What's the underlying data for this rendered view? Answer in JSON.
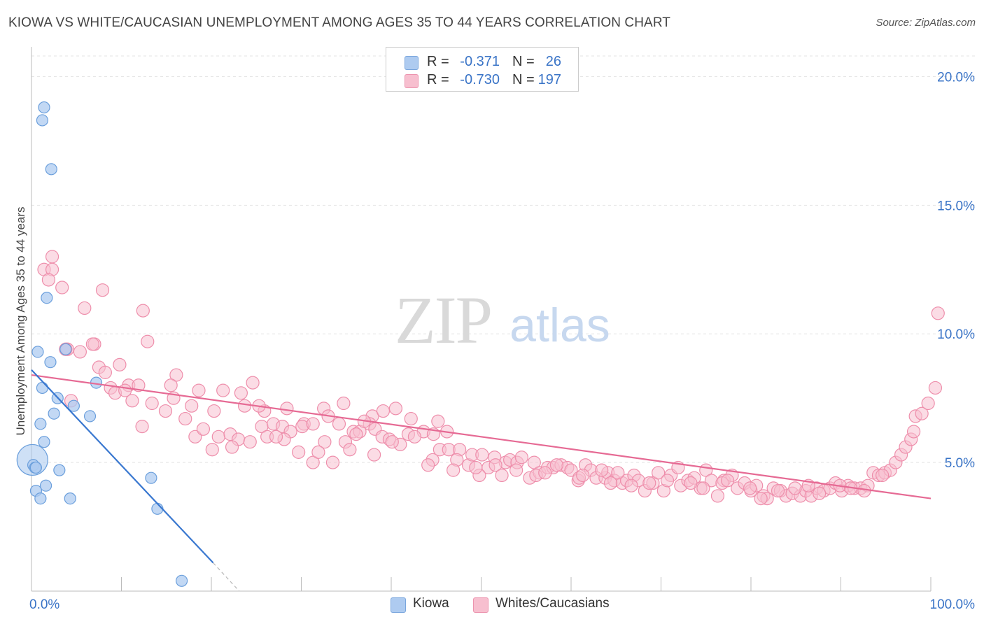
{
  "title": "KIOWA VS WHITE/CAUCASIAN UNEMPLOYMENT AMONG AGES 35 TO 44 YEARS CORRELATION CHART",
  "source": "Source: ZipAtlas.com",
  "watermark": {
    "zip": "ZIP",
    "atlas": "atlas"
  },
  "legend": {
    "rows": [
      {
        "r_label": "R =",
        "r_value": "-0.371",
        "n_label": "N =",
        "n_value": "26",
        "color": "#aecbf0",
        "border": "#7aa6dd"
      },
      {
        "r_label": "R =",
        "r_value": "-0.730",
        "n_label": "N =",
        "n_value": "197",
        "color": "#f7bfcf",
        "border": "#ec93ae"
      }
    ]
  },
  "bottom_legend": {
    "kiowa": "Kiowa",
    "whites": "Whites/Caucasians"
  },
  "colors": {
    "kiowa_fill": "#aecbf0",
    "kiowa_stroke": "#6b9fdc",
    "kiowa_line": "#3a78d0",
    "white_fill": "#f7bfcf",
    "white_stroke": "#ee8eab",
    "white_line": "#e66a94",
    "axis_label": "#3a74c7"
  },
  "chart_data": {
    "type": "scatter",
    "title": "KIOWA VS WHITE/CAUCASIAN UNEMPLOYMENT AMONG AGES 35 TO 44 YEARS CORRELATION CHART",
    "xlabel": "",
    "ylabel": "Unemployment Among Ages 35 to 44 years",
    "xlim": [
      0,
      100
    ],
    "ylim": [
      0,
      20.8
    ],
    "x_tick_labels": [
      "0.0%",
      "100.0%"
    ],
    "y_ticks": [
      5,
      10,
      15,
      20
    ],
    "y_tick_labels": [
      "5.0%",
      "10.0%",
      "15.0%",
      "20.0%"
    ],
    "grid": true,
    "legend_position": "top-center",
    "series": [
      {
        "name": "Kiowa",
        "r": -0.371,
        "n": 26,
        "trend": {
          "x": [
            0,
            20.2
          ],
          "y": [
            8.6,
            1.1
          ],
          "dashed_to": [
            23.1,
            0
          ]
        },
        "points": [
          [
            1.4,
            18.8
          ],
          [
            1.2,
            18.3
          ],
          [
            2.2,
            16.4
          ],
          [
            1.7,
            11.4
          ],
          [
            0.7,
            9.3
          ],
          [
            2.1,
            8.9
          ],
          [
            3.8,
            9.4
          ],
          [
            1.2,
            7.9
          ],
          [
            2.9,
            7.5
          ],
          [
            7.2,
            8.1
          ],
          [
            2.5,
            6.9
          ],
          [
            4.7,
            7.2
          ],
          [
            6.5,
            6.8
          ],
          [
            1.0,
            6.5
          ],
          [
            1.4,
            5.8
          ],
          [
            0.2,
            4.9
          ],
          [
            0.4,
            4.8
          ],
          [
            0.5,
            4.8
          ],
          [
            3.1,
            4.7
          ],
          [
            1.6,
            4.1
          ],
          [
            0.5,
            3.9
          ],
          [
            13.3,
            4.4
          ],
          [
            1.0,
            3.6
          ],
          [
            4.3,
            3.6
          ],
          [
            14.0,
            3.2
          ],
          [
            16.7,
            0.4
          ]
        ],
        "big_point": [
          0.1,
          5.1
        ]
      },
      {
        "name": "Whites/Caucasians",
        "r": -0.73,
        "n": 197,
        "trend": {
          "x": [
            0,
            100
          ],
          "y": [
            8.4,
            3.6
          ]
        },
        "points": [
          [
            2.3,
            13.0
          ],
          [
            1.4,
            12.5
          ],
          [
            2.3,
            12.5
          ],
          [
            1.9,
            12.1
          ],
          [
            3.4,
            11.8
          ],
          [
            7.9,
            11.7
          ],
          [
            5.9,
            11.0
          ],
          [
            12.4,
            10.9
          ],
          [
            12.9,
            9.7
          ],
          [
            7.0,
            9.6
          ],
          [
            6.8,
            9.6
          ],
          [
            4.0,
            9.4
          ],
          [
            5.4,
            9.3
          ],
          [
            3.8,
            9.4
          ],
          [
            4.4,
            7.4
          ],
          [
            7.5,
            8.7
          ],
          [
            9.8,
            8.8
          ],
          [
            8.2,
            8.5
          ],
          [
            16.1,
            8.4
          ],
          [
            8.8,
            7.9
          ],
          [
            10.8,
            8.0
          ],
          [
            11.9,
            8.0
          ],
          [
            15.5,
            8.0
          ],
          [
            18.6,
            7.8
          ],
          [
            21.3,
            7.8
          ],
          [
            23.3,
            7.7
          ],
          [
            24.6,
            8.1
          ],
          [
            9.3,
            7.7
          ],
          [
            10.4,
            7.8
          ],
          [
            11.2,
            7.4
          ],
          [
            13.4,
            7.3
          ],
          [
            15.8,
            7.5
          ],
          [
            17.8,
            7.2
          ],
          [
            20.3,
            7.0
          ],
          [
            23.7,
            7.2
          ],
          [
            25.9,
            7.0
          ],
          [
            28.4,
            7.1
          ],
          [
            32.5,
            7.1
          ],
          [
            34.7,
            7.3
          ],
          [
            37.9,
            6.8
          ],
          [
            40.5,
            7.1
          ],
          [
            42.2,
            6.7
          ],
          [
            45.2,
            6.6
          ],
          [
            14.9,
            7.0
          ],
          [
            17.1,
            6.7
          ],
          [
            12.3,
            6.4
          ],
          [
            18.2,
            6.0
          ],
          [
            19.1,
            6.3
          ],
          [
            20.1,
            5.5
          ],
          [
            20.8,
            6.0
          ],
          [
            22.1,
            6.1
          ],
          [
            23.0,
            5.9
          ],
          [
            24.3,
            5.8
          ],
          [
            25.6,
            6.4
          ],
          [
            26.2,
            6.0
          ],
          [
            26.9,
            6.5
          ],
          [
            27.9,
            6.4
          ],
          [
            28.8,
            6.2
          ],
          [
            28.1,
            5.9
          ],
          [
            30.3,
            6.5
          ],
          [
            30.1,
            6.4
          ],
          [
            31.3,
            6.5
          ],
          [
            32.6,
            5.8
          ],
          [
            33.0,
            6.8
          ],
          [
            34.2,
            6.5
          ],
          [
            34.9,
            5.8
          ],
          [
            35.8,
            6.2
          ],
          [
            36.5,
            6.2
          ],
          [
            37.6,
            6.5
          ],
          [
            38.2,
            6.3
          ],
          [
            39.0,
            6.0
          ],
          [
            39.8,
            5.9
          ],
          [
            41.0,
            5.7
          ],
          [
            41.9,
            6.1
          ],
          [
            43.6,
            6.2
          ],
          [
            44.7,
            6.1
          ],
          [
            46.2,
            6.2
          ],
          [
            38.1,
            5.3
          ],
          [
            29.7,
            5.4
          ],
          [
            31.3,
            5.0
          ],
          [
            40.1,
            5.8
          ],
          [
            44.6,
            5.1
          ],
          [
            45.4,
            5.5
          ],
          [
            46.4,
            5.5
          ],
          [
            47.6,
            5.5
          ],
          [
            48.6,
            4.9
          ],
          [
            49.0,
            5.3
          ],
          [
            50.1,
            5.3
          ],
          [
            50.8,
            4.8
          ],
          [
            51.5,
            5.2
          ],
          [
            52.7,
            5.0
          ],
          [
            53.2,
            5.1
          ],
          [
            54.0,
            5.0
          ],
          [
            54.5,
            5.2
          ],
          [
            55.4,
            4.4
          ],
          [
            55.9,
            5.0
          ],
          [
            56.5,
            4.6
          ],
          [
            57.4,
            4.8
          ],
          [
            58.0,
            4.8
          ],
          [
            58.9,
            4.9
          ],
          [
            59.6,
            4.8
          ],
          [
            60.0,
            4.7
          ],
          [
            60.8,
            4.3
          ],
          [
            61.6,
            4.9
          ],
          [
            62.2,
            4.7
          ],
          [
            62.8,
            4.4
          ],
          [
            63.8,
            4.4
          ],
          [
            64.1,
            4.6
          ],
          [
            64.8,
            4.3
          ],
          [
            65.7,
            4.2
          ],
          [
            66.2,
            4.3
          ],
          [
            67.0,
            4.5
          ],
          [
            67.5,
            4.3
          ],
          [
            68.2,
            3.9
          ],
          [
            69.1,
            4.2
          ],
          [
            69.7,
            4.6
          ],
          [
            70.3,
            3.9
          ],
          [
            71.1,
            4.5
          ],
          [
            72.2,
            4.1
          ],
          [
            73.0,
            4.3
          ],
          [
            73.7,
            4.4
          ],
          [
            74.4,
            4.0
          ],
          [
            75.0,
            4.7
          ],
          [
            75.6,
            4.3
          ],
          [
            76.3,
            3.7
          ],
          [
            77.0,
            4.3
          ],
          [
            77.9,
            4.5
          ],
          [
            78.5,
            4.0
          ],
          [
            79.3,
            4.2
          ],
          [
            80.0,
            3.9
          ],
          [
            80.6,
            4.1
          ],
          [
            81.4,
            3.7
          ],
          [
            81.8,
            3.6
          ],
          [
            82.5,
            4.0
          ],
          [
            83.3,
            3.9
          ],
          [
            83.9,
            3.7
          ],
          [
            84.6,
            3.8
          ],
          [
            85.5,
            3.7
          ],
          [
            86.1,
            3.9
          ],
          [
            86.7,
            3.7
          ],
          [
            87.3,
            4.0
          ],
          [
            88.1,
            3.9
          ],
          [
            88.8,
            4.0
          ],
          [
            89.4,
            4.2
          ],
          [
            90.1,
            3.9
          ],
          [
            90.8,
            4.1
          ],
          [
            91.5,
            4.0
          ],
          [
            92.2,
            4.0
          ],
          [
            93.0,
            4.1
          ],
          [
            93.6,
            4.6
          ],
          [
            94.2,
            4.5
          ],
          [
            94.9,
            4.6
          ],
          [
            95.5,
            4.7
          ],
          [
            96.1,
            5.0
          ],
          [
            96.7,
            5.3
          ],
          [
            97.2,
            5.6
          ],
          [
            97.8,
            5.9
          ],
          [
            98.3,
            6.8
          ],
          [
            99.0,
            6.9
          ],
          [
            99.7,
            7.3
          ],
          [
            100.5,
            7.9
          ],
          [
            100.8,
            10.8
          ],
          [
            22.3,
            5.6
          ],
          [
            25.3,
            7.2
          ],
          [
            33.5,
            5.0
          ],
          [
            36.1,
            6.1
          ],
          [
            37.0,
            6.6
          ],
          [
            39.1,
            7.0
          ],
          [
            42.6,
            6.0
          ],
          [
            47.3,
            5.1
          ],
          [
            49.8,
            4.5
          ],
          [
            51.6,
            4.9
          ],
          [
            53.9,
            4.7
          ],
          [
            56.1,
            4.5
          ],
          [
            58.4,
            4.9
          ],
          [
            60.9,
            4.4
          ],
          [
            63.4,
            4.7
          ],
          [
            65.2,
            4.6
          ],
          [
            68.7,
            4.2
          ],
          [
            71.9,
            4.8
          ],
          [
            74.7,
            4.0
          ],
          [
            76.8,
            4.2
          ],
          [
            79.9,
            4.0
          ],
          [
            81.1,
            3.6
          ],
          [
            84.9,
            4.0
          ],
          [
            87.6,
            3.8
          ],
          [
            89.9,
            4.1
          ],
          [
            92.6,
            3.9
          ],
          [
            94.6,
            4.5
          ],
          [
            98.1,
            6.2
          ],
          [
            27.2,
            6.0
          ],
          [
            31.9,
            5.4
          ],
          [
            35.4,
            5.5
          ],
          [
            44.1,
            4.9
          ],
          [
            46.9,
            4.7
          ],
          [
            49.4,
            4.8
          ],
          [
            52.3,
            4.5
          ],
          [
            57.1,
            4.6
          ],
          [
            61.3,
            4.5
          ],
          [
            64.4,
            4.2
          ],
          [
            66.7,
            4.1
          ],
          [
            70.7,
            4.3
          ],
          [
            73.3,
            4.2
          ],
          [
            77.4,
            4.3
          ],
          [
            83.0,
            3.9
          ],
          [
            86.4,
            4.1
          ],
          [
            91.1,
            4.0
          ]
        ]
      }
    ]
  }
}
